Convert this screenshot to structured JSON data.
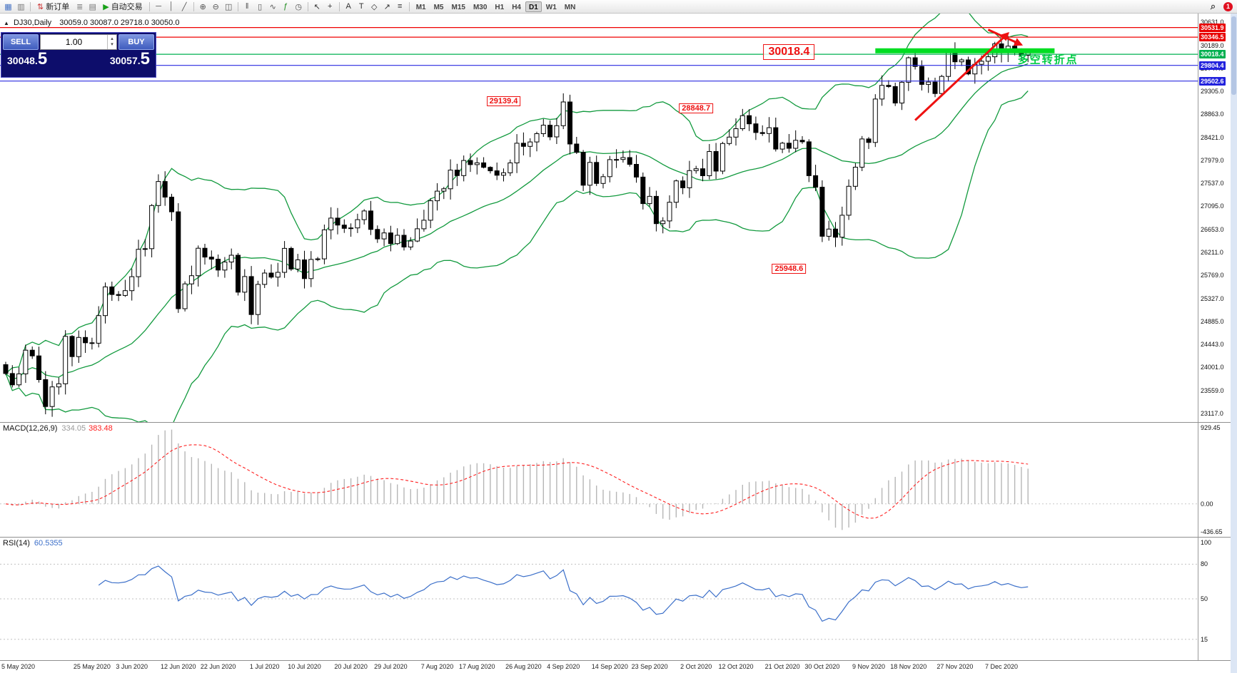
{
  "colors": {
    "up_candle": "#ffffff",
    "down_candle": "#000000",
    "wick": "#000000",
    "bollinger": "#129a3e",
    "hline_red": "#f00000",
    "hline_blue": "#2a2ae0",
    "hline_green": "#00b050",
    "thick_line": "#00dd22",
    "annotation": "#ee1111",
    "cn_note": "#00cc44",
    "macd_hist": "#b6b6b6",
    "macd_signal": "#ff2020",
    "rsi_line": "#3b6fc9",
    "badge_red": "#e80000",
    "badge_blue": "#2222dd",
    "badge_green": "#00b050"
  },
  "toolbar": {
    "new_order_label": "新订单",
    "auto_trading_label": "自动交易",
    "icons": [
      {
        "name": "new-chart",
        "glyph": "▦",
        "color": "#4472c4"
      },
      {
        "name": "chart-profiles",
        "glyph": "▥",
        "color": "#777777"
      },
      {
        "sep": true
      },
      {
        "name": "new-order",
        "glyph": "⇅",
        "color": "#cc3333",
        "label": "new_order_label"
      },
      {
        "name": "market-depth",
        "glyph": "≣",
        "color": "#777777"
      },
      {
        "name": "data-window",
        "glyph": "▤",
        "color": "#777777"
      },
      {
        "name": "auto-trading",
        "glyph": "▶",
        "color": "#18a018",
        "label": "auto_trading_label"
      },
      {
        "sep": true
      },
      {
        "name": "horizontal-line-tool",
        "glyph": "─",
        "color": "#555555"
      },
      {
        "name": "vertical-line-tool",
        "glyph": "│",
        "color": "#555555"
      },
      {
        "name": "trendline-tool",
        "glyph": "╱",
        "color": "#555555"
      },
      {
        "sep": true
      },
      {
        "name": "zoom-in",
        "glyph": "⊕",
        "color": "#555555"
      },
      {
        "name": "zoom-out",
        "glyph": "⊖",
        "color": "#555555"
      },
      {
        "name": "tile-windows",
        "glyph": "◫",
        "color": "#555555"
      },
      {
        "sep": true
      },
      {
        "name": "chart-bars",
        "glyph": "‖",
        "color": "#555555"
      },
      {
        "name": "chart-candles",
        "glyph": "▯",
        "color": "#555555"
      },
      {
        "name": "chart-line",
        "glyph": "∿",
        "color": "#555555"
      },
      {
        "name": "indicators-add",
        "glyph": "ƒ",
        "color": "#1a8a1a"
      },
      {
        "name": "timeframes-menu",
        "glyph": "◷",
        "color": "#555555"
      },
      {
        "sep": true
      },
      {
        "name": "cursor",
        "glyph": "↖",
        "color": "#333333"
      },
      {
        "name": "crosshair",
        "glyph": "+",
        "color": "#333333"
      },
      {
        "sep": true
      },
      {
        "name": "text-tool",
        "glyph": "A",
        "color": "#333333"
      },
      {
        "name": "label-tool",
        "glyph": "T",
        "color": "#333333"
      },
      {
        "name": "shapes-tool",
        "glyph": "◇",
        "color": "#333333"
      },
      {
        "name": "arrows-tool",
        "glyph": "↗",
        "color": "#333333"
      },
      {
        "name": "fibonacci-tool",
        "glyph": "≡",
        "color": "#333333"
      },
      {
        "sep": true
      }
    ],
    "timeframes": [
      {
        "label": "M1"
      },
      {
        "label": "M5"
      },
      {
        "label": "M15"
      },
      {
        "label": "M30"
      },
      {
        "label": "H1"
      },
      {
        "label": "H4"
      },
      {
        "label": "D1",
        "active": true
      },
      {
        "label": "W1"
      },
      {
        "label": "MN"
      }
    ],
    "search_glyph": "⌕",
    "notification_count": "1"
  },
  "title": {
    "marker": "▲",
    "symbol": "DJ30,Daily",
    "ohlc": "30059.0 30087.0 29718.0 30050.0"
  },
  "trade_panel": {
    "sell_label": "SELL",
    "buy_label": "BUY",
    "volume": "1.00",
    "stepper_up_glyph": "▴",
    "stepper_down_glyph": "▾",
    "sell_price_main": "30048.",
    "sell_price_big": "5",
    "buy_price_main": "30057.",
    "buy_price_big": "5"
  },
  "chart_data": {
    "type": "candlestick",
    "symbol": "DJ30",
    "timeframe": "Daily",
    "ylim": [
      22950,
      30800
    ],
    "closes": [
      23883,
      23665,
      23876,
      24331,
      24222,
      23765,
      23248,
      23625,
      23685,
      24597,
      24207,
      24576,
      24474,
      24465,
      24995,
      25548,
      25401,
      25383,
      25475,
      25743,
      26270,
      26282,
      27111,
      27572,
      27272,
      26990,
      25128,
      25605,
      25763,
      26290,
      26120,
      26080,
      25871,
      26025,
      26156,
      25446,
      25746,
      25016,
      25596,
      25813,
      25735,
      25827,
      26287,
      25890,
      26067,
      25706,
      26075,
      26086,
      26643,
      26870,
      26735,
      26672,
      26681,
      26840,
      27006,
      26652,
      26470,
      26585,
      26379,
      26540,
      26313,
      26428,
      26664,
      26828,
      27202,
      27387,
      27433,
      27791,
      27686,
      27977,
      27897,
      27931,
      27845,
      27778,
      27693,
      27740,
      27930,
      28308,
      28248,
      28332,
      28492,
      28654,
      28430,
      28645,
      29101,
      28293,
      28133,
      27501,
      27940,
      27535,
      27666,
      27993,
      27996,
      28032,
      27902,
      27657,
      27148,
      27288,
      26763,
      26815,
      27174,
      27584,
      27452,
      27782,
      27817,
      27683,
      28149,
      27773,
      28303,
      28426,
      28587,
      28838,
      28680,
      28514,
      28494,
      28606,
      28196,
      28309,
      28211,
      28364,
      28336,
      27685,
      27463,
      26520,
      26659,
      26502,
      26925,
      27480,
      27848,
      28390,
      28323,
      29158,
      29421,
      29397,
      29080,
      29480,
      29950,
      29783,
      29438,
      29483,
      29263,
      29591,
      30046,
      29872,
      29910,
      29639,
      29824,
      29884,
      29970,
      30218,
      30070,
      30174,
      30069,
      29999,
      30050
    ],
    "y_axis_labels": [
      30631.0,
      30189.0,
      29747.0,
      29305.0,
      28863.0,
      28421.0,
      27979.0,
      27537.0,
      27095.0,
      26653.0,
      26211.0,
      25769.0,
      25327.0,
      24885.0,
      24443.0,
      24001.0,
      23559.0,
      23117.0
    ],
    "x_labels": [
      "5 May 2020",
      "25 May 2020",
      "3 Jun 2020",
      "12 Jun 2020",
      "22 Jun 2020",
      "1 Jul 2020",
      "10 Jul 2020",
      "20 Jul 2020",
      "29 Jul 2020",
      "7 Aug 2020",
      "17 Aug 2020",
      "26 Aug 2020",
      "4 Sep 2020",
      "14 Sep 2020",
      "23 Sep 2020",
      "2 Oct 2020",
      "12 Oct 2020",
      "21 Oct 2020",
      "30 Oct 2020",
      "9 Nov 2020",
      "18 Nov 2020",
      "27 Nov 2020",
      "7 Dec 2020"
    ],
    "x_label_indices": [
      0,
      13,
      19,
      26,
      32,
      39,
      45,
      52,
      58,
      65,
      71,
      78,
      84,
      91,
      97,
      104,
      110,
      117,
      123,
      130,
      136,
      143,
      150
    ],
    "bollinger": {
      "period": 20,
      "deviation": 2
    },
    "hlines": [
      {
        "price": 30531.9,
        "label": "30531.9",
        "color_key": "hline_red",
        "badge_key": "badge_red"
      },
      {
        "price": 30346.5,
        "label": "30346.5",
        "color_key": "hline_red",
        "badge_key": "badge_red"
      },
      {
        "price": 30018.4,
        "label": "30018.4",
        "color_key": "hline_green",
        "badge_key": "badge_green"
      },
      {
        "price": 29804.4,
        "label": "29804.4",
        "color_key": "hline_blue",
        "badge_key": "badge_blue"
      },
      {
        "price": 29502.6,
        "label": "29502.6",
        "color_key": "hline_blue",
        "badge_key": "badge_blue"
      }
    ],
    "thick_segment": {
      "price": 30085,
      "start_index": 131,
      "end_index": 158
    },
    "arrows": [
      {
        "from_index": 137,
        "from_price": 28750,
        "to_index": 151,
        "to_price": 30420,
        "width": 3
      },
      {
        "from_index": 148,
        "from_price": 30490,
        "to_index": 153,
        "to_price": 30200,
        "width": 3
      }
    ],
    "callouts": [
      {
        "text": "30018.4",
        "index": 118,
        "price": 30060,
        "big": true
      },
      {
        "text": "29139.4",
        "index": 75,
        "price": 29120,
        "big": false
      },
      {
        "text": "28848.7",
        "index": 104,
        "price": 28980,
        "big": false
      },
      {
        "text": "25948.6",
        "index": 118,
        "price": 25900,
        "big": false
      }
    ],
    "cn_note": {
      "text": "多空转折点",
      "index": 157,
      "price": 29920
    },
    "macd": {
      "name": "MACD(12,26,9)",
      "value_main": "334.05",
      "value_signal": "383.48",
      "fast": 12,
      "slow": 26,
      "signal": 9,
      "range": [
        -436.65,
        929.45
      ],
      "axis_labels": [
        "929.45",
        "0.00",
        "-436.65"
      ]
    },
    "rsi": {
      "name": "RSI(14)",
      "value": "60.5355",
      "period": 14,
      "range": [
        0,
        100
      ],
      "levels": [
        80,
        50,
        15
      ],
      "axis_top_label": "100"
    }
  }
}
